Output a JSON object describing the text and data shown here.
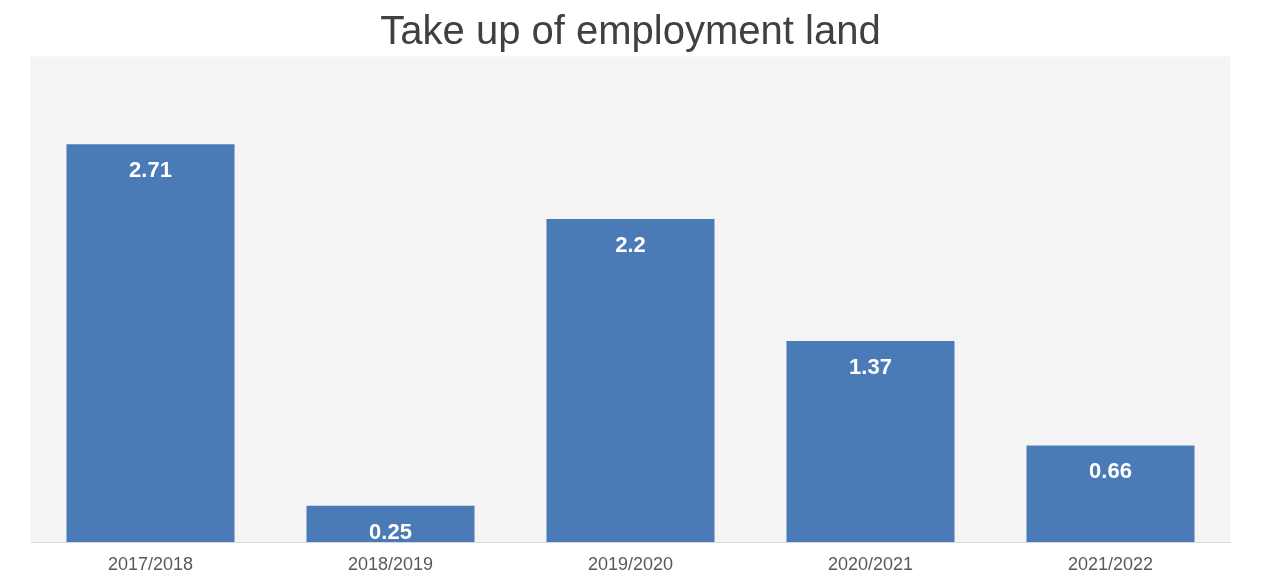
{
  "chart_data": {
    "type": "bar",
    "title": "Take up of employment land",
    "categories": [
      "2017/2018",
      "2018/2019",
      "2019/2020",
      "2020/2021",
      "2021/2022"
    ],
    "values": [
      2.71,
      0.25,
      2.2,
      1.37,
      0.66
    ],
    "color": "#4a7bb7",
    "data_labels": true,
    "grid": false
  }
}
